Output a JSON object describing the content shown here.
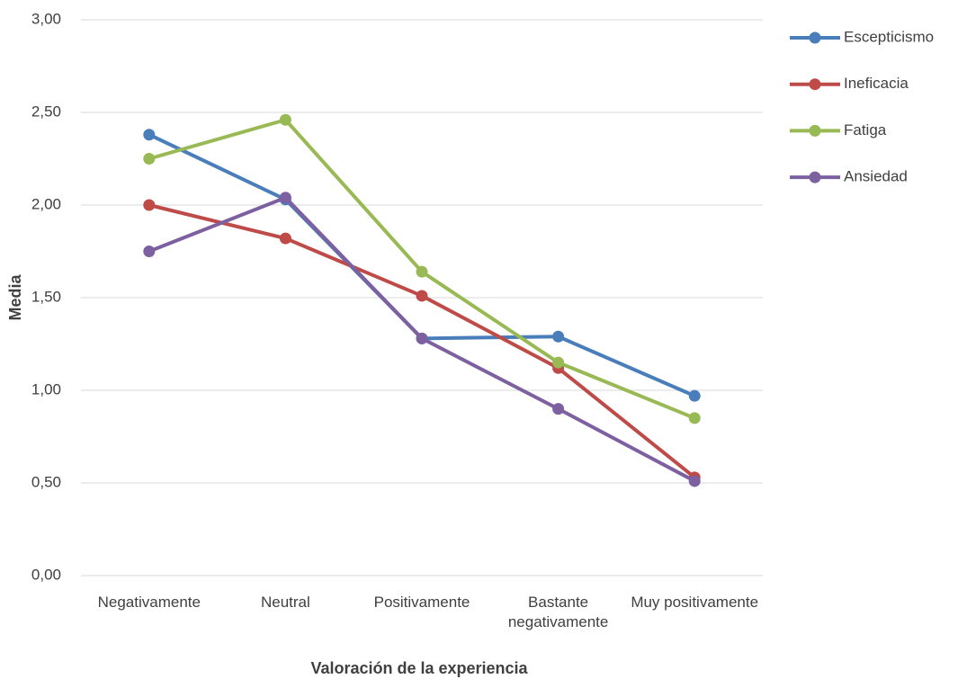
{
  "chart_data": {
    "type": "line",
    "x_label": "Valoración de la experiencia",
    "y_label": "Media",
    "categories": [
      "Negativamente",
      "Neutral",
      "Positivamente",
      "Bastante negativamente",
      "Muy positivamente"
    ],
    "series": [
      {
        "name": "Escepticismo",
        "color": "#4a7ebb",
        "values": [
          2.38,
          2.03,
          1.28,
          1.29,
          0.97
        ]
      },
      {
        "name": "Ineficacia",
        "color": "#be4b48",
        "values": [
          2.0,
          1.82,
          1.51,
          1.12,
          0.53
        ]
      },
      {
        "name": "Fatiga",
        "color": "#98b954",
        "values": [
          2.25,
          2.46,
          1.64,
          1.15,
          0.85
        ]
      },
      {
        "name": "Ansiedad",
        "color": "#7d60a0",
        "values": [
          1.75,
          2.04,
          1.28,
          0.9,
          0.51
        ]
      }
    ],
    "ylim": [
      0,
      3
    ],
    "yticks": [
      {
        "value": 0,
        "label": "0,00"
      },
      {
        "value": 0.5,
        "label": "0,50"
      },
      {
        "value": 1,
        "label": "1,00"
      },
      {
        "value": 1.5,
        "label": "1,50"
      },
      {
        "value": 2,
        "label": "2,00"
      },
      {
        "value": 2.5,
        "label": "2,50"
      },
      {
        "value": 3,
        "label": "3,00"
      }
    ],
    "grid": true,
    "legend": "right"
  }
}
